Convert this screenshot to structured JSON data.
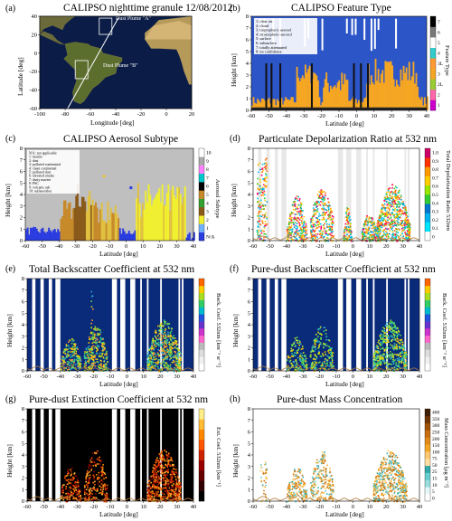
{
  "figure": {
    "panels": {
      "a": {
        "label": "(a)",
        "title": "CALIPSO nighttime granule 12/08/2012",
        "xlabel": "Longitude [deg]",
        "ylabel": "Latitude [deg]",
        "annot_a": "Dust Plume \"A\"",
        "annot_b": "Dust Plume \"B\""
      },
      "b": {
        "label": "(b)",
        "title": "CALIPSO Feature Type",
        "xlabel": "Latitude [deg]",
        "ylabel": "Height [km]",
        "cblabel": "Feature Type",
        "legend": [
          "1: clear air",
          "2: cloud",
          "3: tropospheric aerosol",
          "4: stratospheric aerosol",
          "5: surface",
          "6: subsurface",
          "7: totally attenuated",
          "8: no confidence"
        ]
      },
      "c": {
        "label": "(c)",
        "title": "CALIPSO Aerosol Subtype",
        "xlabel": "Latitude [deg]",
        "ylabel": "Height [km]",
        "cblabel": "Aerosol Subtype",
        "legend": [
          "N/A: not applicable",
          "1: marine",
          "2: dust",
          "3: polluted continental",
          "4: clean continental",
          "5: polluted dust",
          "6: elevated smoke",
          "7: dusty marine",
          "8: PSC",
          "9: volcanic ash",
          "10: sulfate/other"
        ]
      },
      "d": {
        "label": "(d)",
        "title": "Particulate Depolarization Ratio at 532 nm",
        "xlabel": "Latitude [deg]",
        "ylabel": "Height [km]",
        "cblabel": "Total Depolarization Ratio 532nm"
      },
      "e": {
        "label": "(e)",
        "title": "Total Backscatter Coefficient at 532 nm",
        "xlabel": "Latitude [deg]",
        "ylabel": "Height [km]",
        "cblabel": "Back. Coef. 532nm [km⁻¹ sr⁻¹]"
      },
      "f": {
        "label": "(f)",
        "title": "Pure-dust Backscatter Coefficient at 532 nm",
        "xlabel": "Latitude [deg]",
        "ylabel": "Height [km]",
        "cblabel": "Back. Coef. 532nm [km⁻¹ sr⁻¹]"
      },
      "g": {
        "label": "(g)",
        "title": "Pure-dust Extinction Coefficient at 532 nm",
        "xlabel": "Latitude [deg]",
        "ylabel": "Height [km]",
        "cblabel": "Ext. Coef. 532nm [km⁻¹]"
      },
      "h": {
        "label": "(h)",
        "title": "Pure-dust Mass Concentration",
        "xlabel": "Latitude [deg]",
        "ylabel": "Height [km]",
        "cblabel": "Mass Concentration [μg m⁻³]"
      }
    }
  },
  "chart_data": [
    {
      "type": "heatmap",
      "panel": "a",
      "title": "CALIPSO nighttime granule 12/08/2012",
      "xlabel": "Longitude [deg]",
      "ylabel": "Latitude [deg]",
      "xticks": [
        -100,
        -80,
        -60,
        -40,
        -20,
        0,
        20
      ],
      "yticks": [
        -60,
        -40,
        -20,
        0,
        20,
        40
      ],
      "xlim": [
        -100,
        20
      ],
      "ylim": [
        -60,
        40
      ],
      "track": [
        [
          -78,
          -60
        ],
        [
          -38,
          38
        ]
      ],
      "annotations": [
        {
          "text": "Dust Plume \"A\"",
          "x": -40,
          "y": 36
        },
        {
          "text": "Dust Plume \"B\"",
          "x": -50,
          "y": -15
        }
      ]
    },
    {
      "type": "heatmap",
      "panel": "b",
      "title": "CALIPSO Feature Type",
      "xlabel": "Latitude [deg]",
      "ylabel": "Height [km]",
      "xticks": [
        -60,
        -50,
        -40,
        -30,
        -20,
        -10,
        0,
        10,
        20,
        30,
        40
      ],
      "yticks": [
        0,
        1,
        2,
        3,
        4,
        5,
        6,
        7,
        8
      ],
      "xlim": [
        -60,
        40
      ],
      "ylim": [
        0,
        8
      ],
      "colorbar_ticks": [
        "1",
        "2",
        "2L",
        "3",
        "3L",
        "4",
        "5",
        "6",
        "7"
      ],
      "colors": {
        "clear_air": "#2c55c8",
        "cloud": "#f2f2f2",
        "trop_aerosol": "#f5a623",
        "surface": "#000000"
      }
    },
    {
      "type": "heatmap",
      "panel": "c",
      "title": "CALIPSO Aerosol Subtype",
      "xlabel": "Latitude [deg]",
      "ylabel": "Height [km]",
      "xticks": [
        -60,
        -50,
        -40,
        -30,
        -20,
        -10,
        0,
        10,
        20,
        30,
        40
      ],
      "yticks": [
        0,
        1,
        2,
        3,
        4,
        5,
        6,
        7,
        8
      ],
      "xlim": [
        -60,
        40
      ],
      "ylim": [
        0,
        8
      ],
      "colorbar_ticks": [
        "N/A",
        "1",
        "2",
        "3",
        "4",
        "5",
        "6",
        "7",
        "8",
        "9",
        "10"
      ]
    },
    {
      "type": "heatmap",
      "panel": "d",
      "title": "Particulate Depolarization Ratio at 532 nm",
      "xlabel": "Latitude [deg]",
      "ylabel": "Height [km]",
      "xticks": [
        -60,
        -50,
        -40,
        -30,
        -20,
        -10,
        0,
        10,
        20,
        30,
        40
      ],
      "yticks": [
        0,
        1,
        2,
        3,
        4,
        5,
        6,
        7,
        8
      ],
      "xlim": [
        -60,
        40
      ],
      "ylim": [
        0,
        8
      ],
      "colorbar_ticks": [
        "0",
        "0.1",
        "0.2",
        "0.3",
        "0.4",
        "0.5",
        "0.6",
        "0.7",
        "0.8",
        "0.9",
        "1.0"
      ]
    },
    {
      "type": "heatmap",
      "panel": "e",
      "title": "Total Backscatter Coefficient at 532 nm",
      "xlabel": "Latitude [deg]",
      "ylabel": "Height [km]",
      "xticks": [
        -60,
        -50,
        -40,
        -30,
        -20,
        -10,
        0,
        10,
        20,
        30,
        40
      ],
      "yticks": [
        0,
        1,
        2,
        3,
        4,
        5,
        6,
        7,
        8
      ],
      "xlim": [
        -60,
        40
      ],
      "ylim": [
        0,
        8
      ]
    },
    {
      "type": "heatmap",
      "panel": "f",
      "title": "Pure-dust Backscatter Coefficient at 532 nm",
      "xlabel": "Latitude [deg]",
      "ylabel": "Height [km]",
      "xticks": [
        -60,
        -50,
        -40,
        -30,
        -20,
        -10,
        0,
        10,
        20,
        30,
        40
      ],
      "yticks": [
        0,
        1,
        2,
        3,
        4,
        5,
        6,
        7,
        8
      ],
      "xlim": [
        -60,
        40
      ],
      "ylim": [
        0,
        8
      ]
    },
    {
      "type": "heatmap",
      "panel": "g",
      "title": "Pure-dust Extinction Coefficient at 532 nm",
      "xlabel": "Latitude [deg]",
      "ylabel": "Height [km]",
      "xticks": [
        -60,
        -50,
        -40,
        -30,
        -20,
        -10,
        0,
        10,
        20,
        30,
        40
      ],
      "yticks": [
        0,
        1,
        2,
        3,
        4,
        5,
        6,
        7,
        8
      ],
      "xlim": [
        -60,
        40
      ],
      "ylim": [
        0,
        8
      ]
    },
    {
      "type": "heatmap",
      "panel": "h",
      "title": "Pure-dust Mass Concentration",
      "xlabel": "Latitude [deg]",
      "ylabel": "Height [km]",
      "xticks": [
        -60,
        -50,
        -40,
        -30,
        -20,
        -10,
        0,
        10,
        20,
        30,
        40
      ],
      "yticks": [
        0,
        1,
        2,
        3,
        4,
        5,
        6,
        7,
        8
      ],
      "xlim": [
        -60,
        40
      ],
      "ylim": [
        0,
        8
      ],
      "colorbar_ticks": [
        "0",
        "5",
        "10",
        "15",
        "25",
        "50",
        "75",
        "100",
        "150",
        "200",
        "250",
        "300",
        "350",
        "400"
      ]
    }
  ]
}
